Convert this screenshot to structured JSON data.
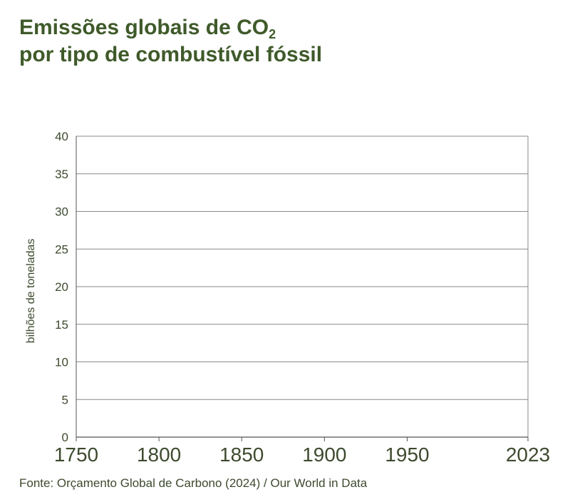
{
  "title": {
    "line1_main": "Emissões globais de CO",
    "line1_sub": "2",
    "line2": "por tipo de combustível fóssil"
  },
  "source": "Fonte: Orçamento Global de Carbono (2024) / Our World in Data",
  "colors": {
    "title": "#3f5a2a",
    "text": "#3d4a2e",
    "gridline": "#8a8a8a",
    "axis": "#555555"
  },
  "chart_data": {
    "type": "area",
    "title": "Emissões globais de CO2 por tipo de combustível fóssil",
    "xlabel": "",
    "ylabel": "bilhões de toneladas",
    "xlim": [
      1750,
      2023
    ],
    "ylim": [
      0,
      40
    ],
    "x_ticks": [
      "1750",
      "1800",
      "1850",
      "1900",
      "1950",
      "2023"
    ],
    "y_ticks": [
      "0",
      "5",
      "10",
      "15",
      "20",
      "25",
      "30",
      "35",
      "40"
    ],
    "grid": "horizontal",
    "series": []
  }
}
